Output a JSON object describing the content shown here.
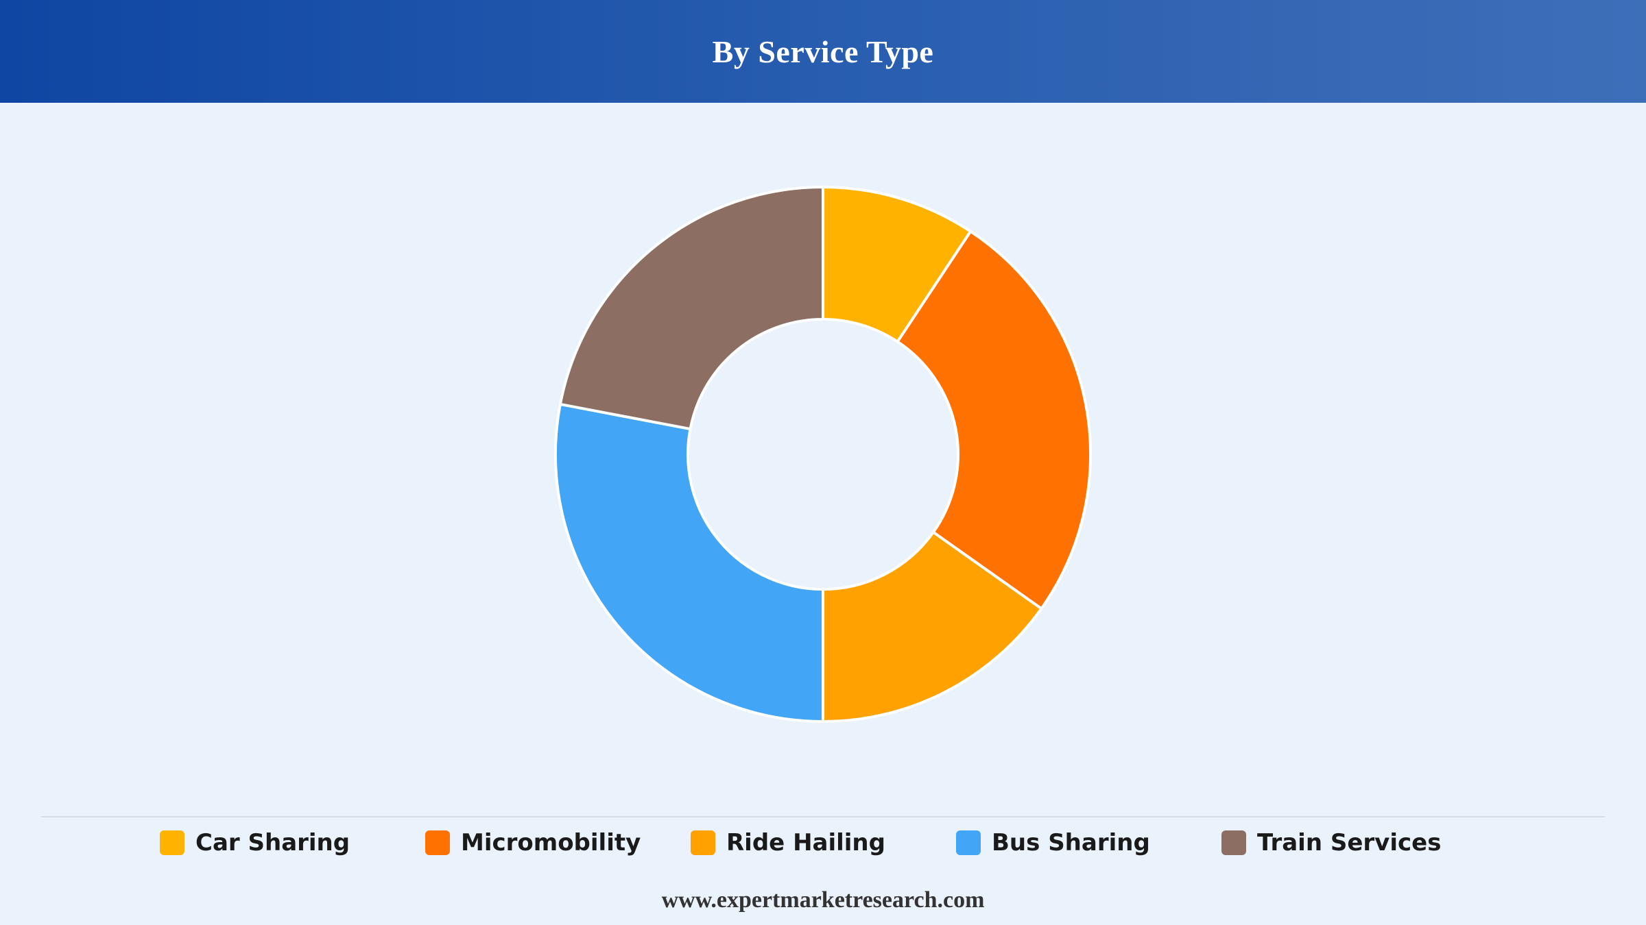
{
  "header": {
    "title": "By Service Type"
  },
  "colors": {
    "header_start": "#0f46a3",
    "header_end": "#3d6fb9",
    "background": "#eaf2fc",
    "slice_border": "#ffffff"
  },
  "chart_data": {
    "type": "pie",
    "variant": "donut",
    "title": "By Service Type",
    "categories": [
      "Car Sharing",
      "Micromobility",
      "Ride Hailing",
      "Bus Sharing",
      "Train Services"
    ],
    "values": [
      9.3,
      25.5,
      15.2,
      28.0,
      22.0
    ],
    "colors": [
      "#ffb300",
      "#ff7100",
      "#ffa100",
      "#42a5f5",
      "#8d6e63"
    ],
    "legend_position": "bottom"
  },
  "footer": {
    "text": "www.expertmarketresearch.com"
  }
}
